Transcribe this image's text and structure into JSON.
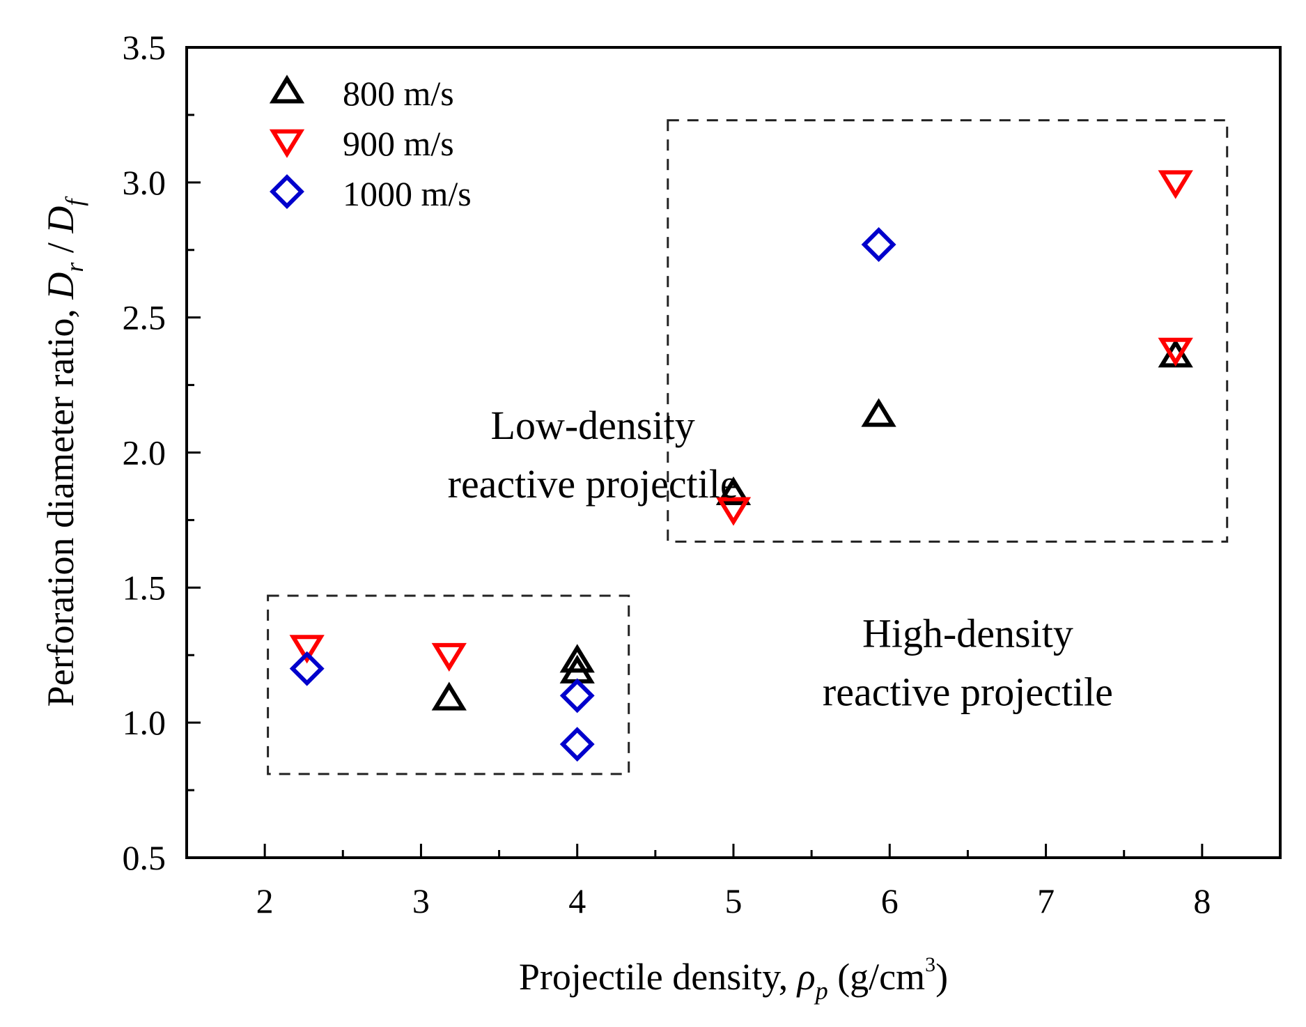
{
  "chart_data": {
    "type": "scatter",
    "xlabel": "Projectile density, ρp (g/cm3)",
    "xlabel_parts": {
      "main": "Projectile density, ",
      "symbol": "ρ",
      "sub": "p",
      "unit_open": " (g/cm",
      "sup": "3",
      "unit_close": ")"
    },
    "ylabel": "Perforation diameter ratio, Dr / Df",
    "ylabel_parts": {
      "main": "Perforation diameter ratio, ",
      "d1": "D",
      "s1": "r",
      "slash": " / ",
      "d2": "D",
      "s2": "f"
    },
    "xlim": [
      1.5,
      8.5
    ],
    "ylim": [
      0.5,
      3.5
    ],
    "xticks": [
      2,
      3,
      4,
      5,
      6,
      7,
      8
    ],
    "xtick_labels": [
      "2",
      "3",
      "4",
      "5",
      "6",
      "7",
      "8"
    ],
    "yticks": [
      0.5,
      1.0,
      1.5,
      2.0,
      2.5,
      3.0,
      3.5
    ],
    "ytick_labels": [
      "0.5",
      "1.0",
      "1.5",
      "2.0",
      "2.5",
      "3.0",
      "3.5"
    ],
    "legend_position": "top-left",
    "grid": false,
    "series": [
      {
        "name": "800 m/s",
        "marker": "triangle-up",
        "color": "#000000",
        "x": [
          3.18,
          4.0,
          4.0,
          5.0,
          5.93,
          7.83
        ],
        "y": [
          1.09,
          1.23,
          1.19,
          1.85,
          2.14,
          2.36
        ]
      },
      {
        "name": "900 m/s",
        "marker": "triangle-down",
        "color": "#ff0000",
        "x": [
          2.27,
          3.18,
          5.0,
          7.83,
          7.83
        ],
        "y": [
          1.28,
          1.25,
          1.79,
          3.0,
          2.38
        ]
      },
      {
        "name": "1000 m/s",
        "marker": "diamond",
        "color": "#0000cc",
        "x": [
          2.27,
          4.0,
          4.0,
          5.93
        ],
        "y": [
          1.2,
          1.1,
          0.92,
          2.77
        ]
      }
    ],
    "annotations": [
      {
        "id": "low-density",
        "lines": [
          "Low-density",
          "reactive projectile"
        ],
        "x": 4.1,
        "y_top": 2.05
      },
      {
        "id": "high-density",
        "lines": [
          "High-density",
          "reactive projectile"
        ],
        "x": 6.5,
        "y_top": 1.28
      }
    ],
    "regions": [
      {
        "id": "low-density-region",
        "x": [
          2.02,
          4.33
        ],
        "y": [
          0.81,
          1.47
        ]
      },
      {
        "id": "high-density-region",
        "x": [
          4.58,
          8.16
        ],
        "y": [
          1.67,
          3.23
        ]
      }
    ]
  }
}
